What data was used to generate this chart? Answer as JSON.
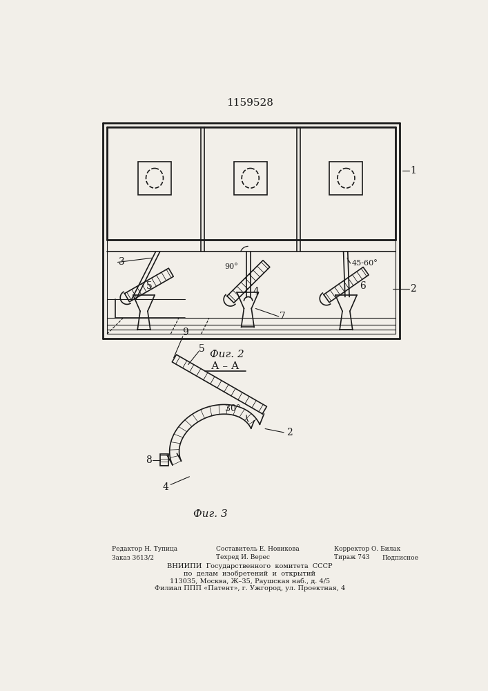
{
  "title": "1159528",
  "fig2_label": "Фиг. 2",
  "fig3_label": "Фиг. 3",
  "section_label": "А – А",
  "bg_color": "#f2efe9",
  "line_color": "#1a1a1a",
  "label1": "1",
  "label2": "2",
  "label3": "3",
  "label4": "4",
  "label5": "5",
  "label6": "6",
  "label7": "7",
  "label8": "8",
  "label9": "9",
  "angle90": "90°",
  "angle4560": "45-60°",
  "angle30": "30°",
  "footer_ed": "Редактор Н. Тупица",
  "footer_comp": "Составитель Е. Новикова",
  "footer_corr": "Корректор О. Билак",
  "footer_order": "Заказ 3613/2",
  "footer_tech": "Техред И. Верес",
  "footer_circ": "Тираж 743",
  "footer_sign": "Подписное",
  "footer_vniip": "ВНИИПИ  Государственного  комитета  СССР",
  "footer_inv": "по  делам  изобретений  и  открытий",
  "footer_addr1": "113035, Москва, Ж–35, Раушская наб., д. 4/5",
  "footer_addr2": "Филиал ППП «Патент», г. Ужгород, ул. Проектная, 4"
}
